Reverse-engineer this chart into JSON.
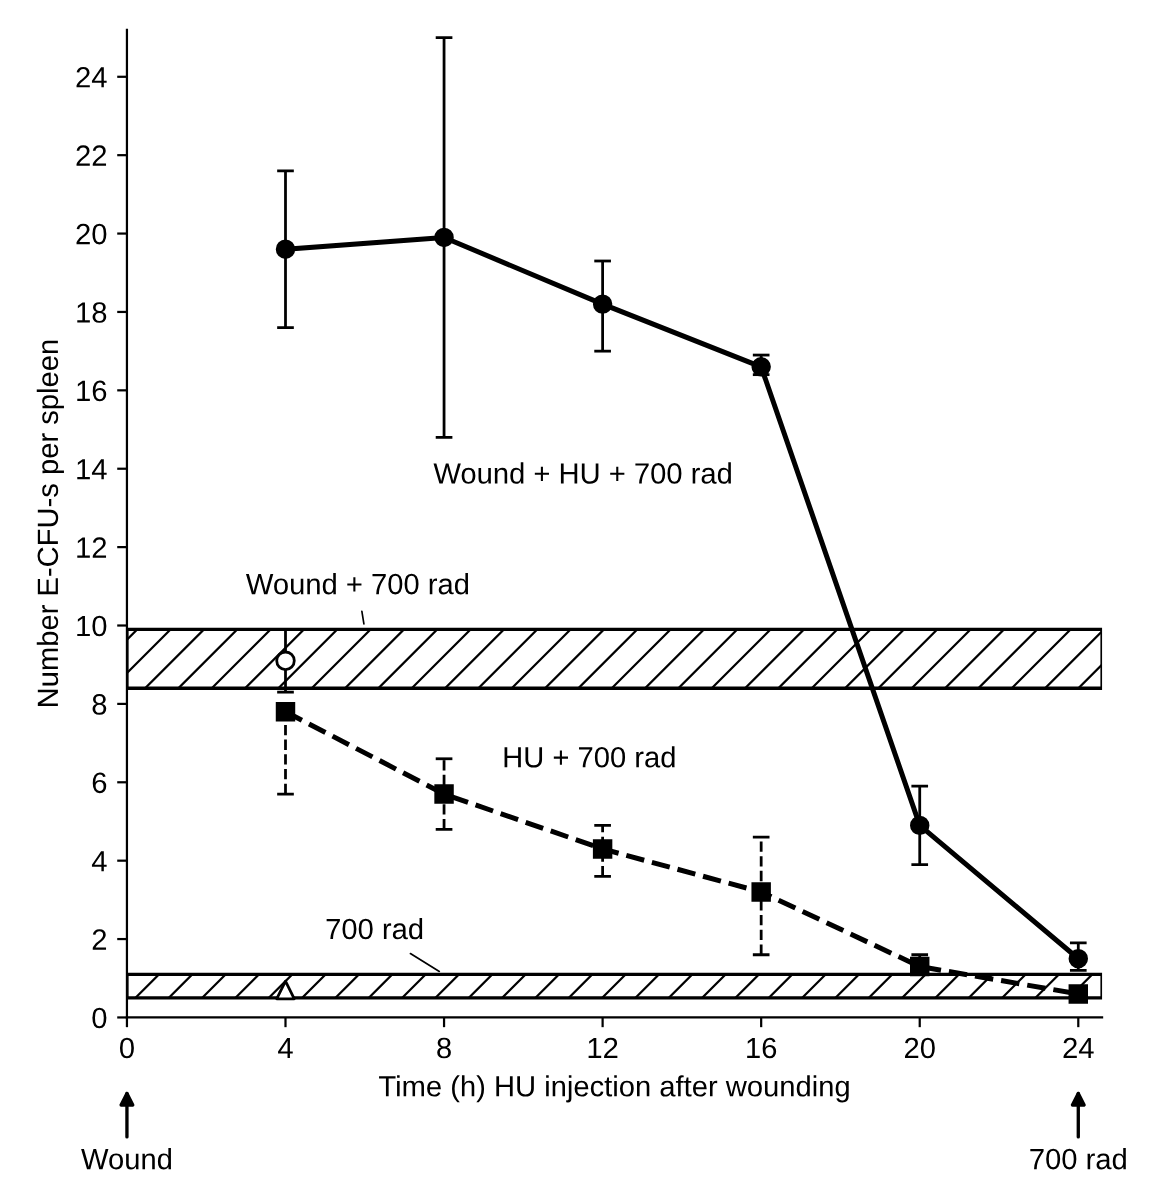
{
  "chart_data": {
    "type": "line",
    "xlabel": "Time (h) HU injection after wounding",
    "ylabel": "Number E-CFU-s per spleen",
    "x": [
      4,
      8,
      12,
      16,
      20,
      24
    ],
    "series": [
      {
        "name": "Wound + HU + 700 rad",
        "color": "#000000",
        "marker": "circle",
        "line_style": "solid",
        "values": [
          19.6,
          19.9,
          18.2,
          16.6,
          4.9,
          1.5
        ],
        "errors": [
          [
            17.6,
            21.6
          ],
          [
            14.8,
            25.0
          ],
          [
            17.0,
            19.3
          ],
          [
            16.4,
            16.9
          ],
          [
            3.9,
            5.9
          ],
          [
            1.2,
            1.9
          ]
        ]
      },
      {
        "name": "HU + 700 rad",
        "color": "#000000",
        "marker": "square",
        "line_style": "dashed",
        "values": [
          7.8,
          5.7,
          4.3,
          3.2,
          1.3,
          0.6
        ],
        "errors": [
          [
            5.7,
            8.0
          ],
          [
            4.8,
            6.6
          ],
          [
            3.6,
            4.9
          ],
          [
            1.6,
            4.6
          ],
          [
            1.1,
            1.6
          ],
          null
        ]
      },
      {
        "type": "scatter",
        "color": "#000000",
        "marker": "circle",
        "x": [
          4
        ],
        "values": [
          9.1
        ],
        "errors": [
          [
            8.3,
            9.9
          ]
        ]
      },
      {
        "type": "scatter",
        "color": "#000000",
        "marker": "triangle",
        "x": [
          4
        ],
        "values": [
          0.7
        ]
      }
    ],
    "bands": [
      {
        "axis": "y",
        "from": 8.4,
        "to": 9.9,
        "label": "Wound + 700 rad"
      },
      {
        "axis": "y",
        "from": 0.5,
        "to": 1.1,
        "label": "700 rad"
      }
    ],
    "annotations": [
      "Wound",
      "700 rad"
    ],
    "xlim": [
      0,
      24.6
    ],
    "ylim": [
      0,
      25.2
    ],
    "xticks": [
      0,
      4,
      8,
      12,
      16,
      20,
      24
    ],
    "yticks": [
      0,
      2,
      4,
      6,
      8,
      10,
      12,
      14,
      16,
      18,
      20,
      22,
      24
    ],
    "grid": false,
    "legend": false
  }
}
